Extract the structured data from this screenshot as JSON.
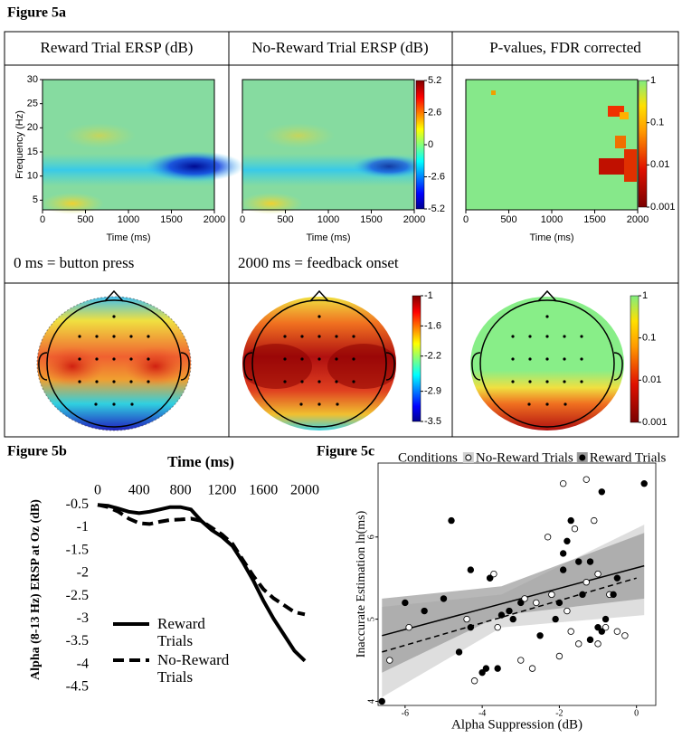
{
  "figure_5a": {
    "label": "Figure 5a",
    "columns": [
      {
        "title": "Reward Trial ERSP (dB)"
      },
      {
        "title": "No-Reward Trial ERSP (dB)"
      },
      {
        "title": "P-values, FDR corrected"
      }
    ],
    "notes": [
      "0 ms = button press",
      "2000 ms = feedback onset"
    ],
    "spectrogram": {
      "ylabel": "Frequency (Hz)",
      "xlabel": "Time (ms)",
      "xlim": [
        0,
        2000
      ],
      "ylim": [
        3,
        30
      ],
      "xticks": [
        0,
        500,
        1000,
        1500,
        2000
      ],
      "yticks": [
        5,
        10,
        15,
        20,
        25,
        30
      ]
    },
    "ersp_colorbar": {
      "lim": [
        -5.2,
        5.2
      ],
      "ticks": [
        5.2,
        2.6,
        0,
        -2.6,
        -5.2
      ]
    },
    "p_colorbar": {
      "lim": [
        0.001,
        1
      ],
      "log_scale": true,
      "ticks": [
        1,
        0.1,
        0.01,
        0.001
      ]
    },
    "topo_ersp_colorbar": {
      "lim": [
        -3.5,
        -1
      ],
      "ticks": [
        -1,
        -1.6,
        -2.2,
        -2.9,
        -3.5
      ]
    },
    "topo_p_colorbar": {
      "lim": [
        0.001,
        1
      ],
      "log_scale": true,
      "ticks": [
        1,
        0.1,
        0.01,
        0.001
      ]
    }
  },
  "chart_data": [
    {
      "type": "line",
      "label": "Figure 5b",
      "xlabel": "Time (ms)",
      "ylabel": "Alpha (8-13 Hz) ERSP at Oz (dB)",
      "x": [
        0,
        100,
        200,
        300,
        400,
        500,
        600,
        700,
        800,
        900,
        1000,
        1100,
        1200,
        1300,
        1400,
        1500,
        1600,
        1700,
        1800,
        1900,
        2000
      ],
      "xlim": [
        0,
        2000
      ],
      "xticks": [
        0,
        400,
        800,
        1200,
        1600,
        2000
      ],
      "ylim": [
        -4.5,
        0
      ],
      "yticks": [
        -0.5,
        -1,
        -1.5,
        -2,
        -2.5,
        -3,
        -3.5,
        -4,
        -4.5
      ],
      "series": [
        {
          "name": "Reward Trials",
          "color": "#000000",
          "dash": "solid",
          "values": [
            -0.5,
            -0.52,
            -0.58,
            -0.65,
            -0.68,
            -0.65,
            -0.6,
            -0.55,
            -0.55,
            -0.6,
            -0.85,
            -1.05,
            -1.2,
            -1.4,
            -1.75,
            -2.15,
            -2.6,
            -3.0,
            -3.35,
            -3.7,
            -3.92
          ]
        },
        {
          "name": "No-Reward Trials",
          "color": "#000000",
          "dash": "dashed",
          "values": [
            -0.5,
            -0.55,
            -0.65,
            -0.8,
            -0.9,
            -0.92,
            -0.87,
            -0.83,
            -0.82,
            -0.8,
            -0.85,
            -1.0,
            -1.15,
            -1.35,
            -1.7,
            -2.05,
            -2.35,
            -2.55,
            -2.7,
            -2.85,
            -2.9
          ]
        }
      ]
    },
    {
      "type": "scatter",
      "label": "Figure 5c",
      "legend_title": "Conditions",
      "xlabel": "Alpha Suppression (dB)",
      "ylabel": "Inaccurate Estimation ln(ms)",
      "xlim": [
        -6.7,
        0.5
      ],
      "ylim": [
        3.95,
        6.9
      ],
      "xticks": [
        -6,
        -4,
        -2,
        0
      ],
      "yticks": [
        4,
        5,
        6
      ],
      "series": [
        {
          "name": "No-Reward Trials",
          "marker": "open",
          "color": "#000000",
          "dash": "dashed",
          "band_color": "#d0d0d0",
          "x": [
            -6.4,
            -5.9,
            -4.2,
            -3.8,
            -3.7,
            -3.6,
            -3.0,
            -2.9,
            -2.7,
            -2.3,
            -2.6,
            -2.0,
            -1.9,
            -1.8,
            -1.6,
            -1.5,
            -1.3,
            -1.1,
            -1.0,
            -1.0,
            -0.8,
            -0.7,
            -0.5,
            -0.3,
            -1.3,
            -1.7,
            -4.4,
            -2.2
          ],
          "y": [
            4.5,
            4.9,
            4.25,
            5.5,
            5.55,
            4.9,
            4.5,
            5.25,
            4.4,
            6.0,
            5.2,
            4.55,
            6.65,
            5.1,
            6.1,
            4.7,
            6.7,
            6.2,
            4.7,
            5.55,
            4.9,
            5.3,
            4.85,
            4.8,
            5.45,
            4.85,
            5.0,
            5.3
          ],
          "fit": {
            "x": [
              -6.6,
              0
            ],
            "y": [
              4.6,
              5.5
            ]
          },
          "band": {
            "x": [
              -6.6,
              -3.5,
              0.2
            ],
            "lower": [
              4.05,
              4.9,
              5.05
            ],
            "upper": [
              5.15,
              5.3,
              6.15
            ]
          }
        },
        {
          "name": "Reward Trials",
          "marker": "filled",
          "color": "#000000",
          "dash": "solid",
          "band_color": "#9a9a9a",
          "x": [
            -6.6,
            -6.0,
            -5.5,
            -5.0,
            -4.8,
            -4.6,
            -4.3,
            -4.3,
            -4.0,
            -3.9,
            -3.8,
            -3.6,
            -3.5,
            -3.3,
            -3.2,
            -3.0,
            -2.5,
            -2.1,
            -1.9,
            -1.9,
            -1.8,
            -1.7,
            -1.5,
            -1.4,
            -1.2,
            -1.2,
            -0.9,
            -0.9,
            -0.8,
            -0.6,
            -0.5,
            0.2,
            -2.0,
            -1.0
          ],
          "y": [
            4.0,
            5.2,
            5.1,
            5.25,
            6.2,
            4.6,
            5.6,
            4.9,
            4.35,
            4.4,
            5.5,
            4.4,
            5.05,
            5.1,
            5.0,
            5.2,
            4.8,
            5.0,
            5.8,
            5.6,
            5.95,
            6.2,
            5.7,
            5.3,
            4.75,
            5.7,
            6.55,
            4.85,
            5.0,
            5.3,
            5.5,
            6.65,
            5.2,
            4.9
          ],
          "fit": {
            "x": [
              -6.6,
              0.2
            ],
            "y": [
              4.8,
              5.65
            ]
          },
          "band": {
            "x": [
              -6.6,
              -3.5,
              0.2
            ],
            "lower": [
              4.35,
              5.05,
              5.25
            ],
            "upper": [
              5.25,
              5.4,
              6.05
            ]
          }
        }
      ]
    }
  ]
}
